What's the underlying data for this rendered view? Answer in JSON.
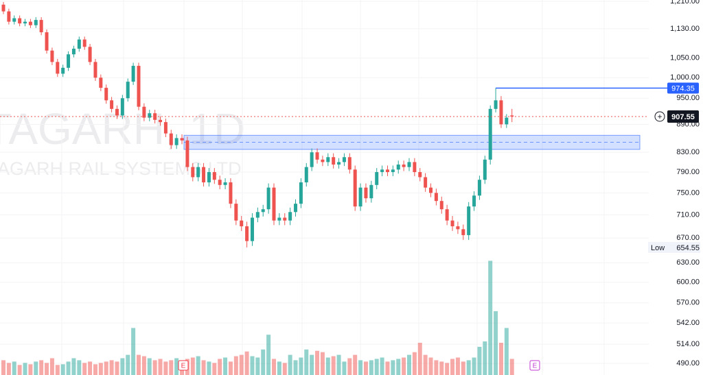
{
  "chart_data": {
    "type": "candlestick",
    "watermark": [
      "TAGARH, 1D",
      "AGARH RAIL SYSTEMS LTD"
    ],
    "log_scale": true,
    "grid": true,
    "up_color": "#26a69a",
    "down_color": "#ef5350",
    "ylim": [
      476,
      1214
    ],
    "yticks": [
      {
        "value": 1210,
        "label": "1,210.00"
      },
      {
        "value": 1130,
        "label": "1,130.00"
      },
      {
        "value": 1050,
        "label": "1,050.00"
      },
      {
        "value": 1000,
        "label": "1,000.00"
      },
      {
        "value": 950,
        "label": "950.00"
      },
      {
        "value": 890,
        "label": "890.00"
      },
      {
        "value": 830,
        "label": "830.00"
      },
      {
        "value": 790,
        "label": "790.00"
      },
      {
        "value": 750,
        "label": "750.00"
      },
      {
        "value": 710,
        "label": "710.00"
      },
      {
        "value": 670,
        "label": "670.00"
      },
      {
        "value": 630,
        "label": "630.00"
      },
      {
        "value": 600,
        "label": "600.00"
      },
      {
        "value": 570,
        "label": "570.00"
      },
      {
        "value": 542,
        "label": "542.00"
      },
      {
        "value": 514,
        "label": "514.00"
      },
      {
        "value": 490,
        "label": "490.00"
      }
    ],
    "open": [
      1200,
      1180,
      1150,
      1160,
      1145,
      1150,
      1140,
      1155,
      1120,
      1070,
      1040,
      1010,
      1025,
      1060,
      1075,
      1100,
      1080,
      1040,
      1000,
      975,
      945,
      925,
      910,
      950,
      990,
      1030,
      930,
      905,
      915,
      900,
      895,
      870,
      845,
      860,
      855,
      800,
      780,
      800,
      770,
      790,
      775,
      765,
      770,
      730,
      700,
      690,
      665,
      705,
      715,
      720,
      760,
      700,
      705,
      700,
      715,
      730,
      770,
      800,
      830,
      815,
      810,
      820,
      805,
      810,
      820,
      795,
      725,
      760,
      740,
      765,
      790,
      795,
      790,
      795,
      805,
      800,
      810,
      790,
      780,
      760,
      750,
      735,
      720,
      700,
      690,
      685,
      675,
      725,
      745,
      775,
      815,
      925,
      945,
      890,
      910
    ],
    "high": [
      1208,
      1188,
      1168,
      1168,
      1158,
      1158,
      1163,
      1163,
      1128,
      1078,
      1048,
      1033,
      1068,
      1083,
      1108,
      1108,
      1088,
      1048,
      1008,
      983,
      953,
      933,
      958,
      998,
      1038,
      1038,
      938,
      923,
      923,
      908,
      903,
      878,
      868,
      868,
      863,
      808,
      808,
      808,
      798,
      798,
      783,
      778,
      778,
      738,
      708,
      698,
      713,
      723,
      728,
      768,
      768,
      713,
      713,
      723,
      738,
      778,
      808,
      838,
      838,
      823,
      828,
      828,
      818,
      828,
      828,
      803,
      768,
      768,
      773,
      798,
      803,
      803,
      803,
      813,
      813,
      818,
      818,
      798,
      788,
      768,
      758,
      743,
      728,
      708,
      698,
      693,
      733,
      753,
      783,
      823,
      933,
      974.35,
      955,
      913,
      925
    ],
    "low": [
      1172,
      1142,
      1142,
      1137,
      1137,
      1132,
      1132,
      1112,
      1062,
      1032,
      1002,
      1002,
      1017,
      1052,
      1067,
      1072,
      1032,
      992,
      967,
      937,
      917,
      902,
      902,
      942,
      982,
      922,
      897,
      897,
      892,
      887,
      862,
      837,
      837,
      847,
      792,
      772,
      772,
      762,
      762,
      767,
      757,
      757,
      722,
      692,
      682,
      654.55,
      657,
      697,
      707,
      712,
      692,
      692,
      692,
      692,
      707,
      722,
      762,
      792,
      807,
      802,
      802,
      797,
      797,
      802,
      787,
      717,
      717,
      732,
      732,
      757,
      782,
      782,
      782,
      787,
      792,
      792,
      782,
      772,
      752,
      742,
      727,
      712,
      692,
      682,
      677,
      667,
      667,
      717,
      737,
      767,
      805,
      917,
      882,
      882,
      895
    ],
    "close": [
      1180,
      1150,
      1160,
      1145,
      1150,
      1140,
      1155,
      1120,
      1070,
      1040,
      1010,
      1025,
      1060,
      1075,
      1100,
      1080,
      1040,
      1000,
      975,
      945,
      925,
      910,
      950,
      990,
      1030,
      930,
      905,
      915,
      900,
      895,
      870,
      845,
      860,
      855,
      800,
      780,
      800,
      770,
      790,
      775,
      765,
      770,
      730,
      700,
      690,
      665,
      705,
      715,
      720,
      760,
      700,
      705,
      700,
      715,
      730,
      770,
      800,
      830,
      815,
      810,
      820,
      805,
      810,
      820,
      795,
      725,
      760,
      740,
      765,
      790,
      795,
      790,
      795,
      805,
      800,
      810,
      790,
      780,
      760,
      750,
      735,
      720,
      700,
      690,
      685,
      675,
      725,
      745,
      775,
      815,
      925,
      945,
      890,
      905,
      907.55
    ],
    "volume": [
      22,
      18,
      20,
      15,
      18,
      16,
      20,
      22,
      18,
      25,
      15,
      16,
      20,
      25,
      22,
      18,
      20,
      16,
      18,
      20,
      22,
      20,
      25,
      30,
      70,
      30,
      28,
      25,
      22,
      24,
      20,
      22,
      25,
      20,
      24,
      26,
      28,
      22,
      20,
      18,
      24,
      26,
      20,
      28,
      30,
      35,
      28,
      26,
      38,
      60,
      24,
      20,
      18,
      30,
      22,
      26,
      38,
      30,
      36,
      34,
      26,
      28,
      30,
      20,
      25,
      30,
      22,
      20,
      22,
      24,
      26,
      20,
      22,
      24,
      26,
      30,
      34,
      48,
      30,
      26,
      22,
      20,
      18,
      24,
      26,
      20,
      22,
      26,
      42,
      50,
      170,
      95,
      48,
      70,
      24
    ],
    "volume_lim": [
      0,
      200
    ],
    "zone": {
      "top": 866,
      "bottom": 836,
      "mid": 851,
      "color": "#2962ff"
    },
    "low_label": "Low",
    "events": [
      "E",
      "E"
    ]
  }
}
